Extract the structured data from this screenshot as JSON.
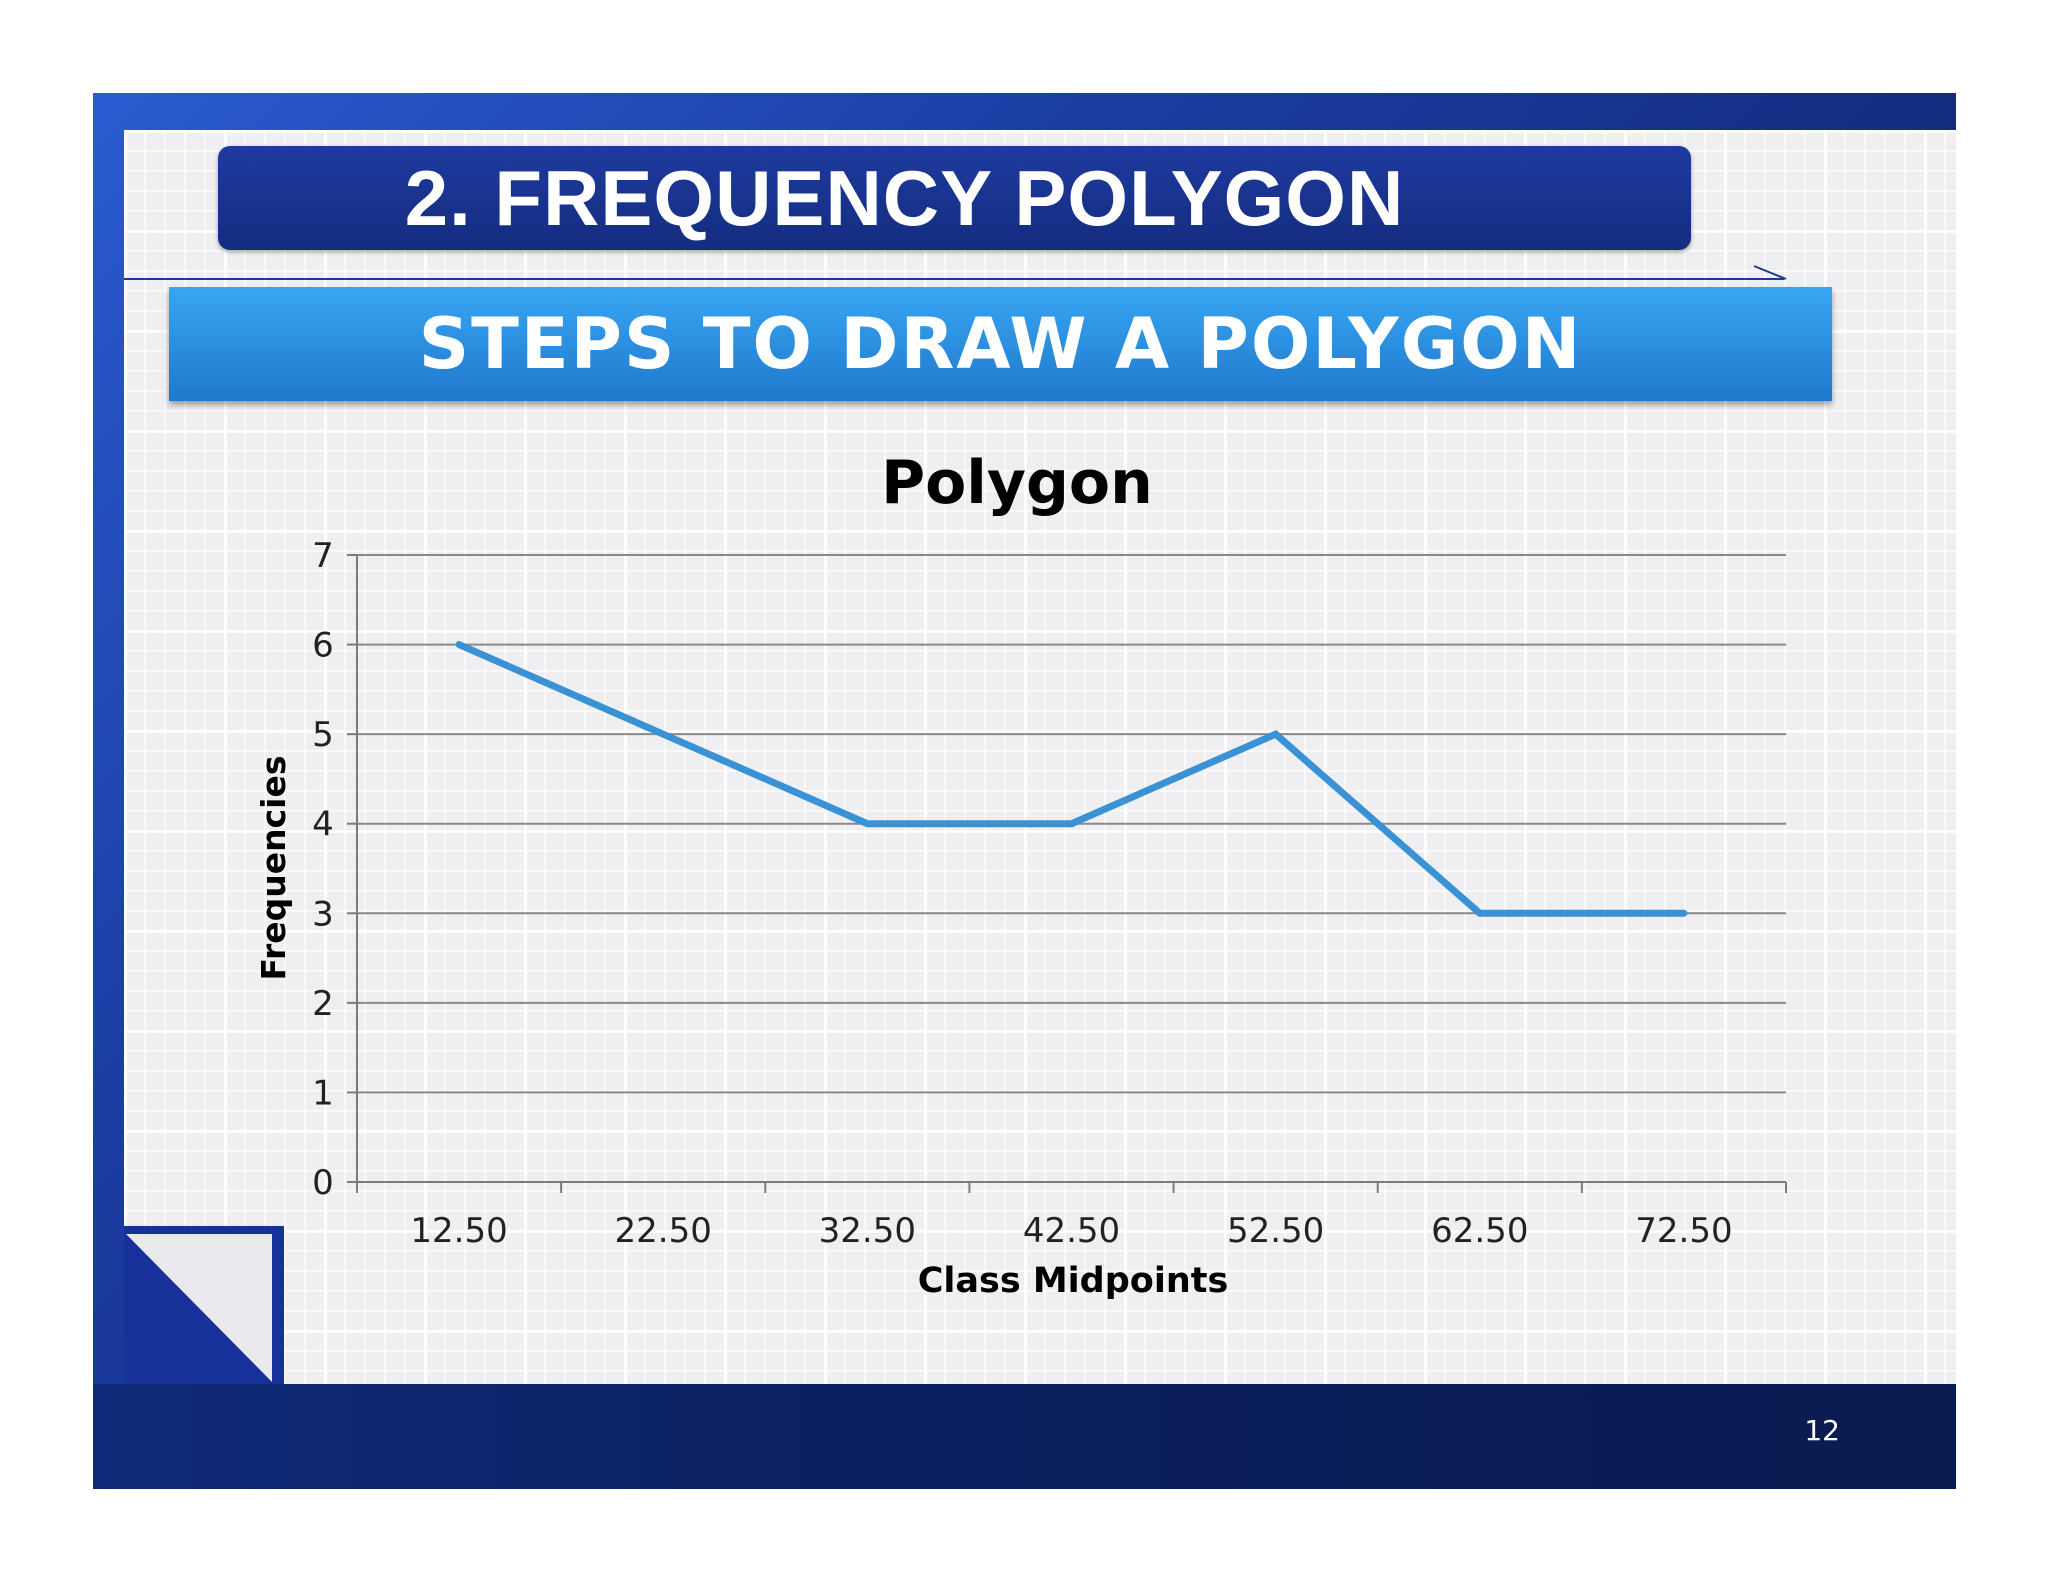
{
  "slide": {
    "title": "2. FREQUENCY POLYGON",
    "subtitle": "STEPS TO DRAW A POLYGON",
    "page_number": "12"
  },
  "colors": {
    "line": "#3a92d6",
    "title_bar": "#142c80",
    "subtitle_bar": "#2c8fe0"
  },
  "chart_data": {
    "type": "line",
    "title": "Polygon",
    "xlabel": "Class Midpoints",
    "ylabel": "Frequencies",
    "categories": [
      "12.50",
      "22.50",
      "32.50",
      "42.50",
      "52.50",
      "62.50",
      "72.50"
    ],
    "series": [
      {
        "values": [
          6,
          5,
          4,
          4,
          5,
          3,
          3
        ]
      }
    ],
    "ylim": [
      0,
      7
    ],
    "yticks": [
      "0",
      "1",
      "2",
      "3",
      "4",
      "5",
      "6",
      "7"
    ],
    "grid": "horizontal",
    "legend": "none"
  }
}
